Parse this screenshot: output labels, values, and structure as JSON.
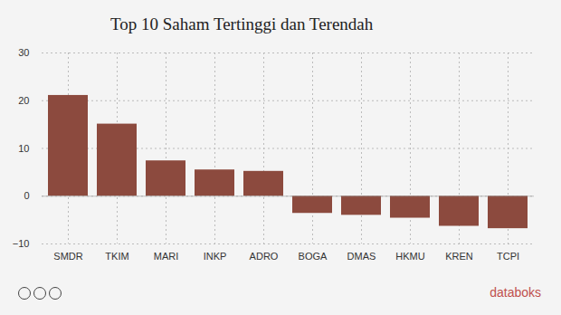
{
  "chart_data": {
    "type": "bar",
    "title": "Top 10 Saham Tertinggi dan Terendah",
    "categories": [
      "SMDR",
      "TKIM",
      "MARI",
      "INKP",
      "ADRO",
      "BOGA",
      "DMAS",
      "HKMU",
      "KREN",
      "TCPI"
    ],
    "values": [
      21.1,
      15.1,
      7.4,
      5.5,
      5.2,
      -3.6,
      -4.0,
      -4.6,
      -6.3,
      -6.8
    ],
    "color": "#8c4a3e",
    "ylim": [
      -10,
      30
    ],
    "yticks": [
      -10,
      0,
      10,
      20,
      30
    ],
    "grid": true,
    "credit": "databoks"
  }
}
